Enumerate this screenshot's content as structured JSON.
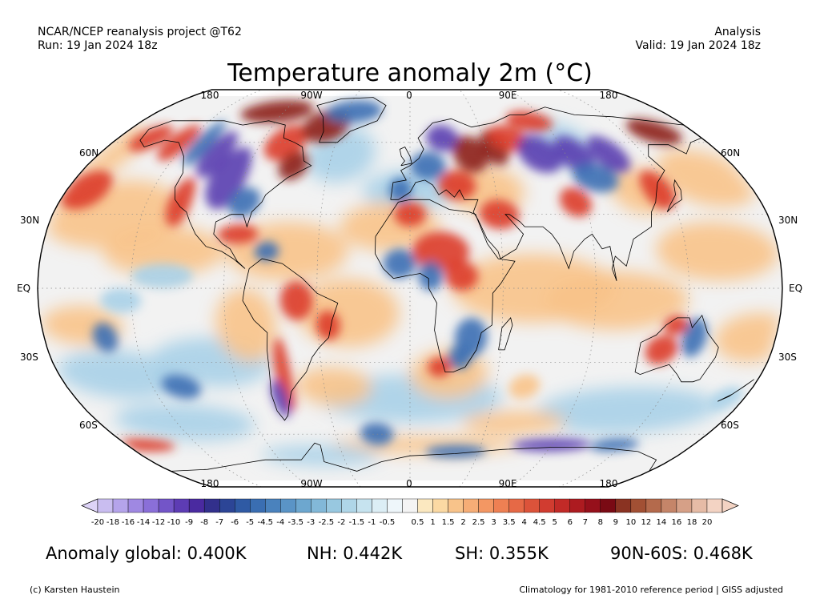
{
  "header": {
    "project": "NCAR/NCEP reanalysis project @T62",
    "run": "Run: 19 Jan 2024 18z",
    "type": "Analysis",
    "valid": "Valid: 19 Jan 2024 18z"
  },
  "title": "Temperature anomaly 2m (°C)",
  "map": {
    "projection": "Robinson",
    "lon_labels_top": [
      "180",
      "90W",
      "0",
      "90E",
      "180"
    ],
    "lon_labels_bottom": [
      "180",
      "90W",
      "0",
      "90E",
      "180"
    ],
    "lat_labels_left": [
      "60N",
      "30N",
      "EQ",
      "30S",
      "60S"
    ],
    "lat_labels_right": [
      "60N",
      "30N",
      "EQ",
      "30S",
      "60S"
    ],
    "gridlines": true,
    "colors": {
      "cold_strong": "#5a3fb0",
      "cold": "#3c6fb4",
      "cool": "#a8d0e8",
      "neutral": "#f2f2f2",
      "warm": "#f8c38a",
      "hot": "#dc3c2a",
      "very_hot": "#8c1e14"
    }
  },
  "colorbar": {
    "labels": [
      "-20",
      "-18",
      "-16",
      "-14",
      "-12",
      "-10",
      "-9",
      "-8",
      "-7",
      "-6",
      "-5",
      "-4.5",
      "-4",
      "-3.5",
      "-3",
      "-2.5",
      "-2",
      "-1.5",
      "-1",
      "-0.5",
      "0.5",
      "1",
      "1.5",
      "2",
      "2.5",
      "3",
      "3.5",
      "4",
      "4.5",
      "5",
      "6",
      "7",
      "8",
      "9",
      "10",
      "12",
      "14",
      "16",
      "18",
      "20"
    ],
    "colors": [
      "#c9bdf0",
      "#b5a4eb",
      "#9f88e2",
      "#8a6fd8",
      "#7355c8",
      "#5d3cb4",
      "#4a2aa0",
      "#32308c",
      "#2c4596",
      "#2f5aa4",
      "#3a6eb2",
      "#4a82bd",
      "#5a94c6",
      "#6da7cf",
      "#82b8d8",
      "#98c8e0",
      "#afd6e8",
      "#c6e3ef",
      "#dceef5",
      "#eef6fa",
      "#f4f4f4",
      "#fbe8c0",
      "#fbd9a3",
      "#f8c38a",
      "#f6ad76",
      "#f39763",
      "#ee8053",
      "#e66946",
      "#dc533a",
      "#d13c30",
      "#c22a27",
      "#ad1b20",
      "#96101b",
      "#7a0a14",
      "#8a3322",
      "#a25034",
      "#b46a4c",
      "#c58569",
      "#d6a087",
      "#e6bba6",
      "#f3d3c3"
    ],
    "left_end_color": "#ddd3f7",
    "right_end_color": "#f3d3c3"
  },
  "stats": {
    "global": "Anomaly global: 0.400K",
    "nh": "NH: 0.442K",
    "sh": "SH: 0.355K",
    "arctic": "90N-60S: 0.468K"
  },
  "footer": {
    "credit": "(c) Karsten Haustein",
    "note": "Climatology for 1981-2010 reference period | GISS adjusted"
  }
}
